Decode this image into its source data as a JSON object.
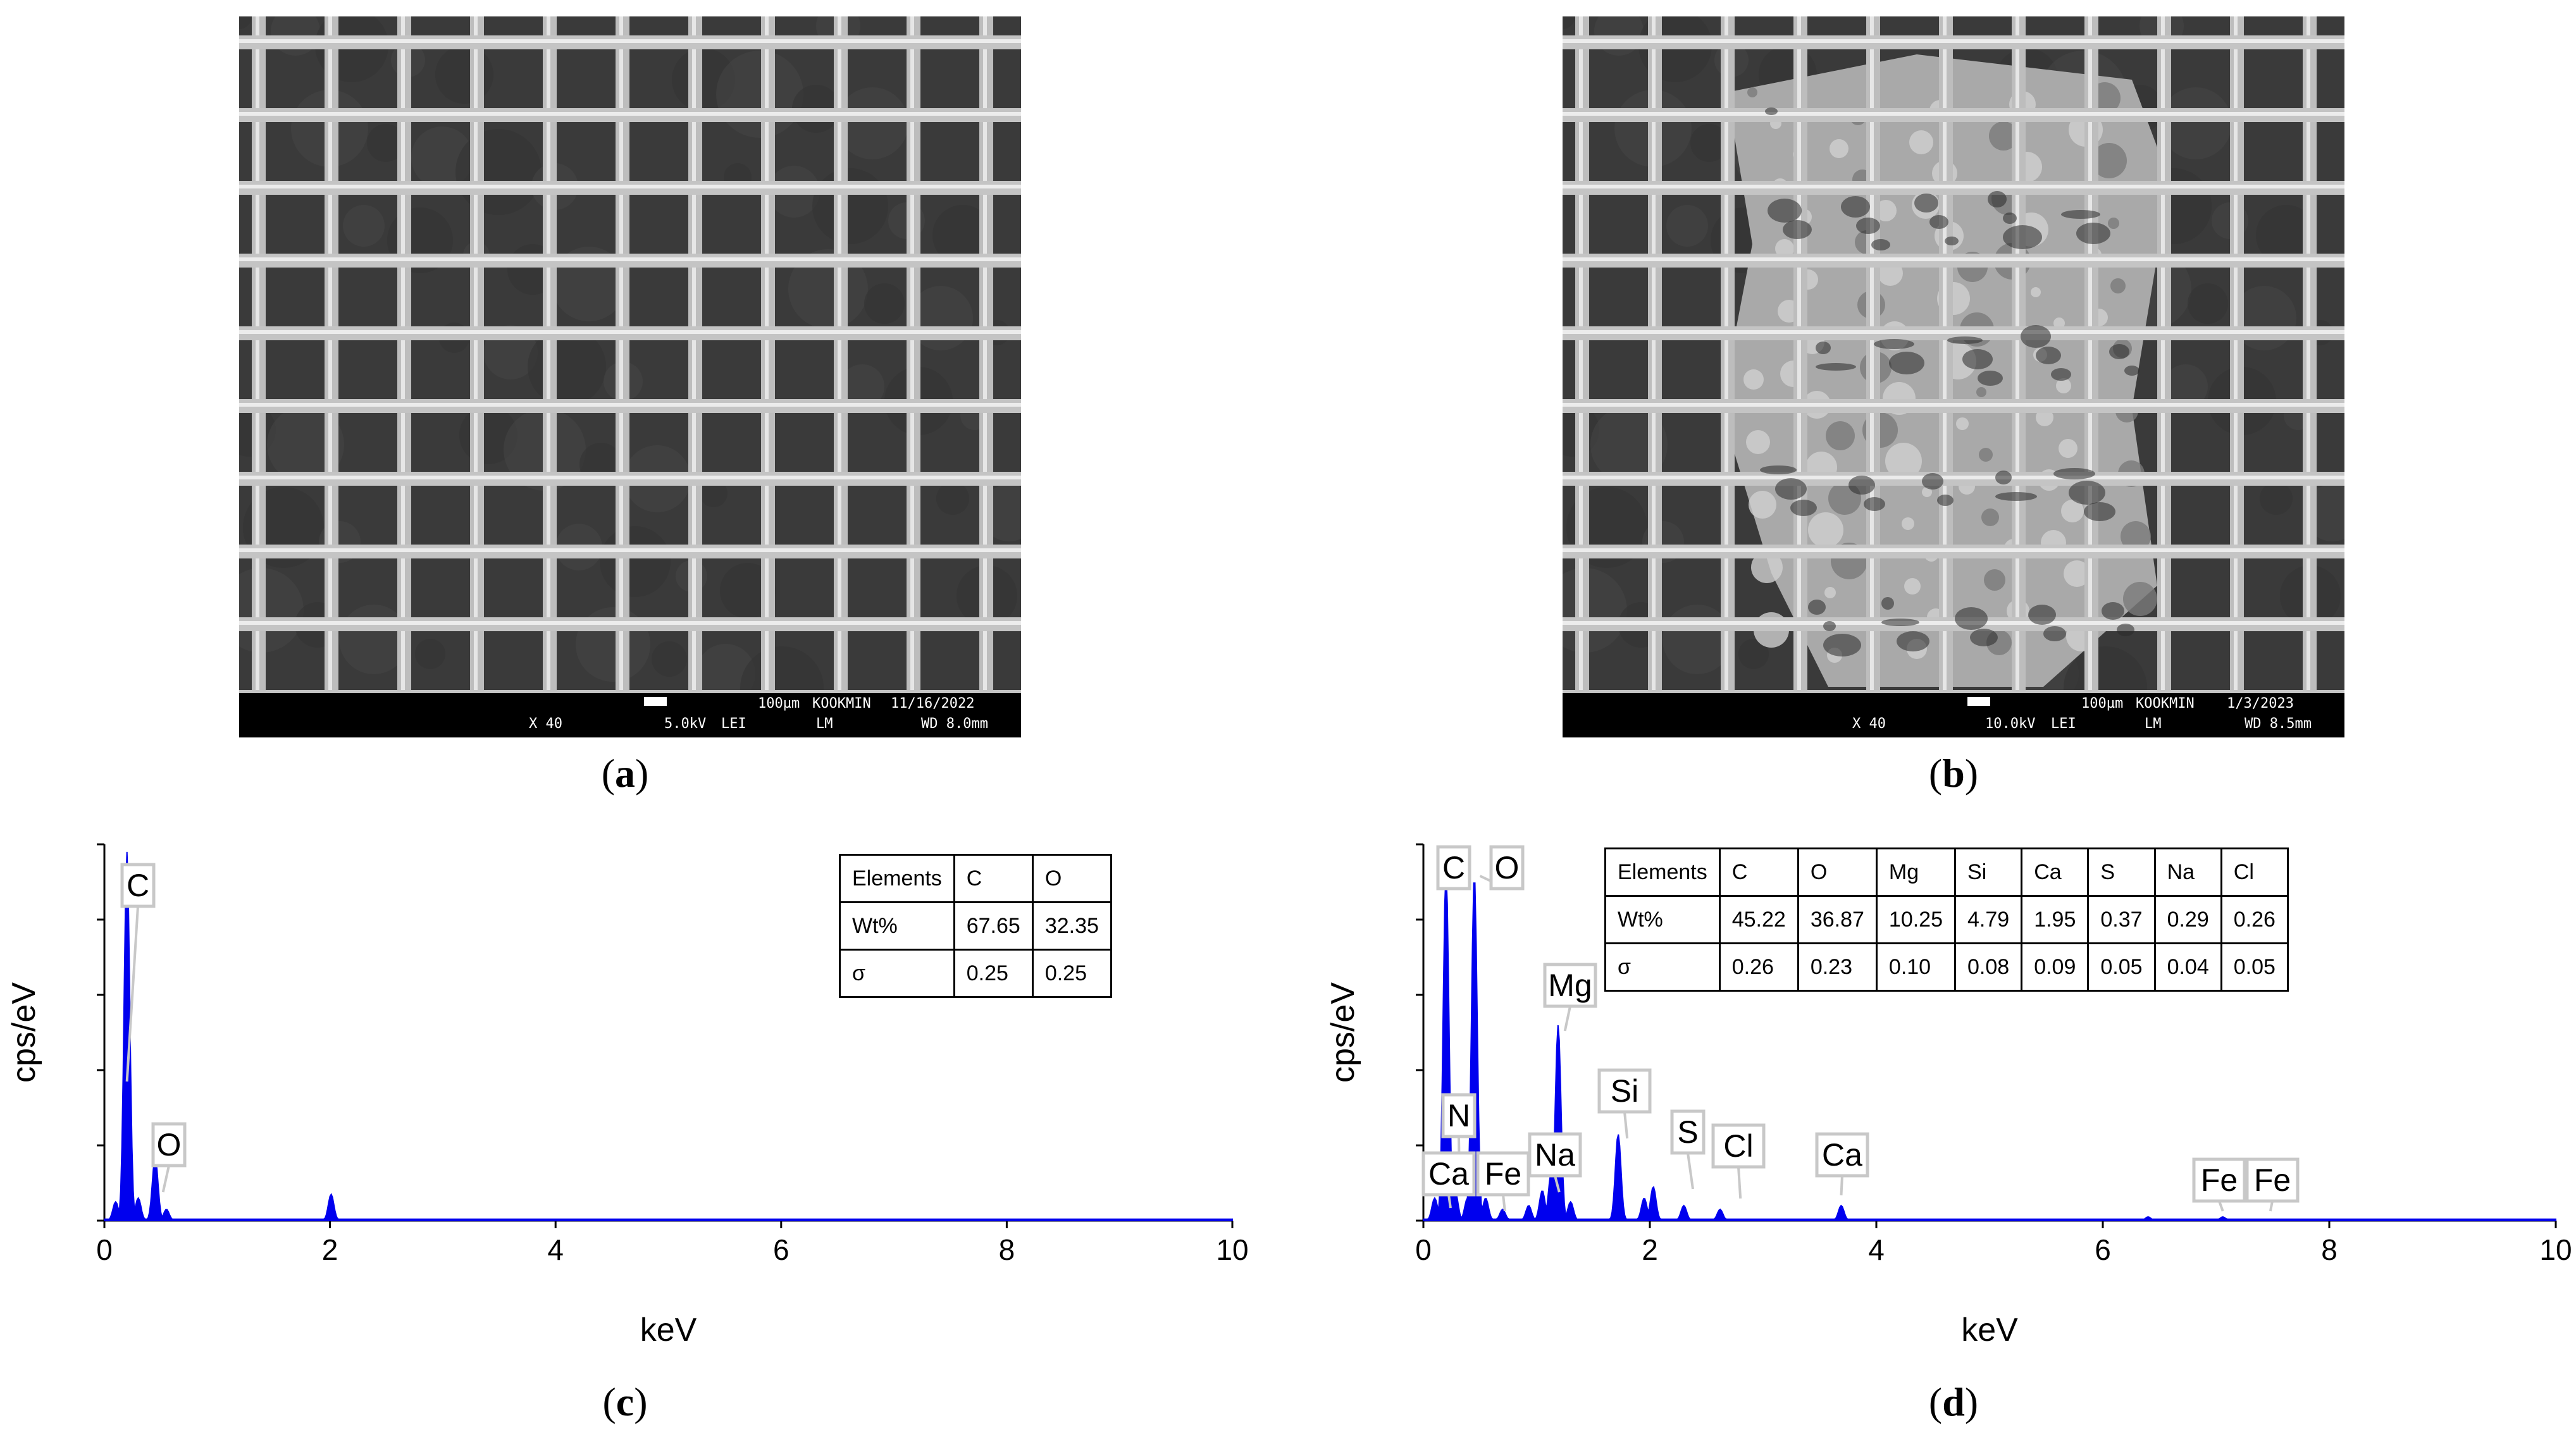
{
  "panels": {
    "a": {
      "caption": "a",
      "sem": {
        "magnification": "X 40",
        "voltage": "5.0kV",
        "detector": "LEI",
        "mode": "LM",
        "scale": "100µm",
        "lab": "KOOKMIN",
        "date": "11/16/2022",
        "wd": "WD 8.0mm"
      }
    },
    "b": {
      "caption": "b",
      "sem": {
        "magnification": "X 40",
        "voltage": "10.0kV",
        "detector": "LEI",
        "mode": "LM",
        "scale": "100µm",
        "lab": "KOOKMIN",
        "date": "1/3/2023",
        "wd": "WD 8.5mm"
      }
    },
    "c": {
      "caption": "c"
    },
    "d": {
      "caption": "d"
    }
  },
  "chart_data": [
    {
      "type": "area",
      "panel": "c",
      "xlabel": "keV",
      "ylabel": "cps/eV",
      "xlim": [
        0,
        10
      ],
      "xticks": [
        "0",
        "2",
        "4",
        "6",
        "8",
        "10"
      ],
      "color": "#0000ee",
      "peaks": [
        {
          "x": 0.1,
          "y": 0.05
        },
        {
          "x": 0.2,
          "y": 0.98
        },
        {
          "x": 0.3,
          "y": 0.06
        },
        {
          "x": 0.45,
          "y": 0.17
        },
        {
          "x": 0.55,
          "y": 0.03
        },
        {
          "x": 2.01,
          "y": 0.07
        }
      ],
      "annotations": [
        {
          "label": "C",
          "x": 0.2
        },
        {
          "label": "O",
          "x": 0.52
        }
      ],
      "table": {
        "headers": [
          "Elements",
          "C",
          "O"
        ],
        "rows": [
          [
            "Wt%",
            "67.65",
            "32.35"
          ],
          [
            "σ",
            "0.25",
            "0.25"
          ]
        ]
      }
    },
    {
      "type": "area",
      "panel": "d",
      "xlabel": "keV",
      "ylabel": "cps/eV",
      "xlim": [
        0,
        10
      ],
      "xticks": [
        "0",
        "2",
        "4",
        "6",
        "8",
        "10"
      ],
      "color": "#0000ee",
      "peaks": [
        {
          "x": 0.1,
          "y": 0.06
        },
        {
          "x": 0.2,
          "y": 0.93
        },
        {
          "x": 0.28,
          "y": 0.08
        },
        {
          "x": 0.39,
          "y": 0.06
        },
        {
          "x": 0.45,
          "y": 0.92
        },
        {
          "x": 0.55,
          "y": 0.06
        },
        {
          "x": 0.7,
          "y": 0.03
        },
        {
          "x": 0.93,
          "y": 0.04
        },
        {
          "x": 1.05,
          "y": 0.08
        },
        {
          "x": 1.13,
          "y": 0.13
        },
        {
          "x": 1.19,
          "y": 0.52
        },
        {
          "x": 1.3,
          "y": 0.05
        },
        {
          "x": 1.72,
          "y": 0.23
        },
        {
          "x": 1.95,
          "y": 0.06
        },
        {
          "x": 2.03,
          "y": 0.09
        },
        {
          "x": 2.3,
          "y": 0.04
        },
        {
          "x": 2.62,
          "y": 0.03
        },
        {
          "x": 3.69,
          "y": 0.04
        },
        {
          "x": 6.4,
          "y": 0.01
        },
        {
          "x": 7.06,
          "y": 0.01
        }
      ],
      "annotations": [
        {
          "label": "C",
          "x": 0.2
        },
        {
          "label": "O",
          "x": 0.5
        },
        {
          "label": "N",
          "x": 0.32
        },
        {
          "label": "Ca",
          "x": 0.24
        },
        {
          "label": "Fe",
          "x": 0.72
        },
        {
          "label": "Na",
          "x": 1.2
        },
        {
          "label": "Mg",
          "x": 1.25
        },
        {
          "label": "Si",
          "x": 1.8
        },
        {
          "label": "S",
          "x": 2.38
        },
        {
          "label": "Cl",
          "x": 2.8
        },
        {
          "label": "Ca",
          "x": 3.69
        },
        {
          "label": "Fe",
          "x": 7.06
        },
        {
          "label": "Fe",
          "x": 7.48
        }
      ],
      "table": {
        "headers": [
          "Elements",
          "C",
          "O",
          "Mg",
          "Si",
          "Ca",
          "S",
          "Na",
          "Cl"
        ],
        "rows": [
          [
            "Wt%",
            "45.22",
            "36.87",
            "10.25",
            "4.79",
            "1.95",
            "0.37",
            "0.29",
            "0.26"
          ],
          [
            "σ",
            "0.26",
            "0.23",
            "0.10",
            "0.08",
            "0.09",
            "0.05",
            "0.04",
            "0.05"
          ]
        ]
      }
    }
  ]
}
